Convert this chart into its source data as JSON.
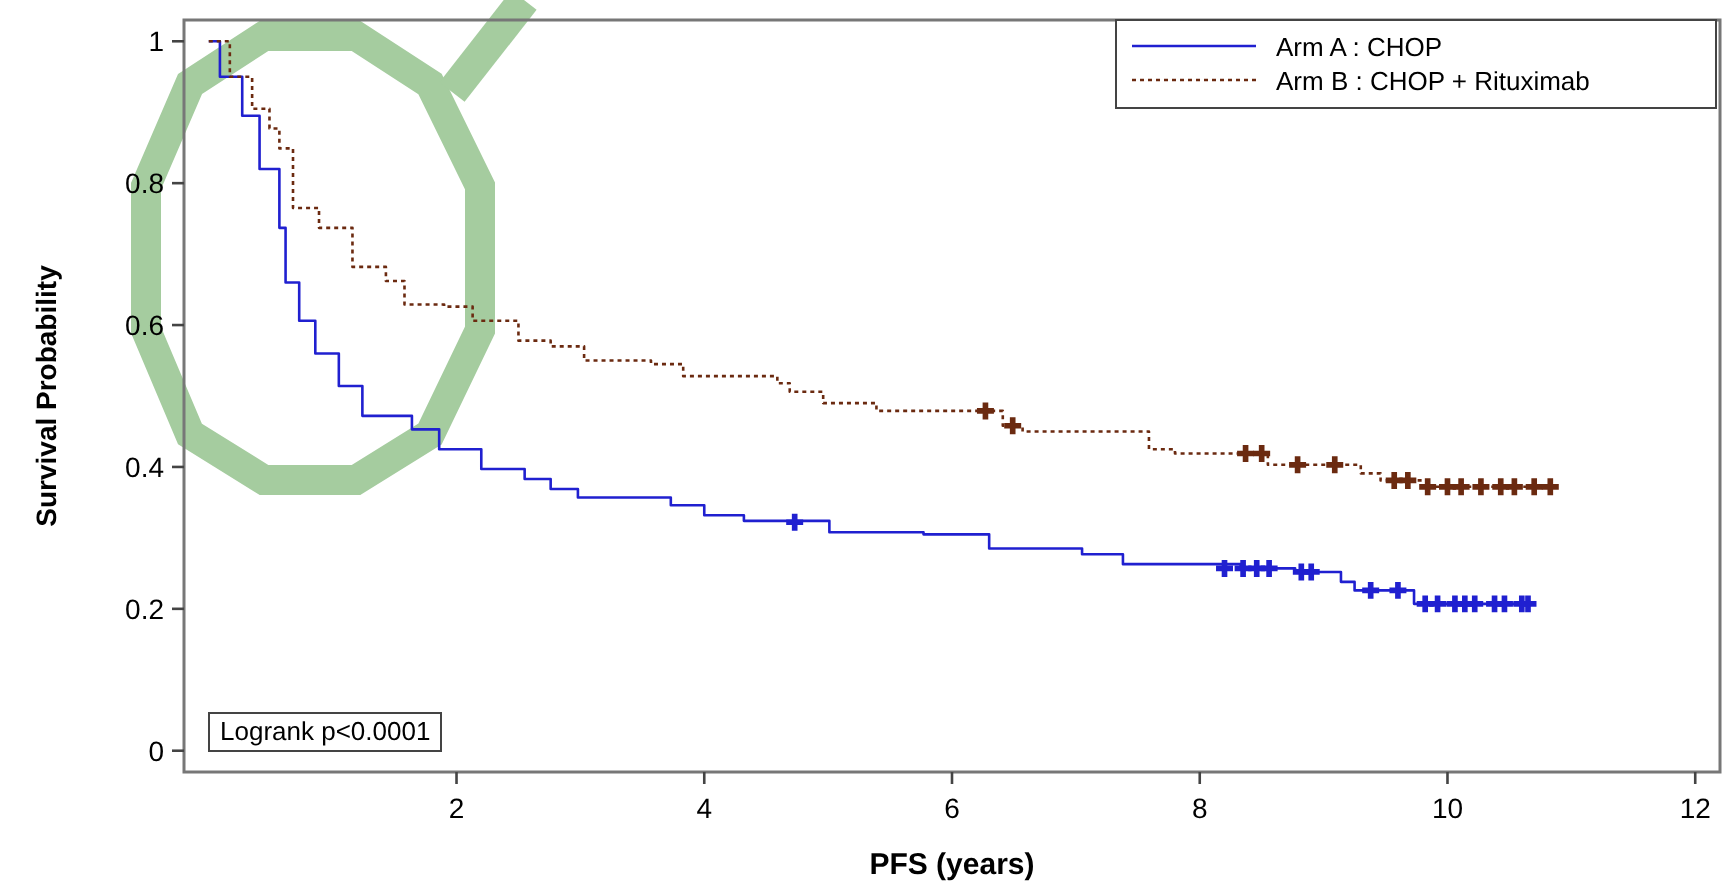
{
  "chart_data": {
    "type": "step",
    "xlabel": "PFS (years)",
    "ylabel": "Survival Probability",
    "xlim": [
      -0.2,
      12.2
    ],
    "ylim": [
      -0.03,
      1.03
    ],
    "xticks": [
      2,
      4,
      6,
      8,
      10,
      12
    ],
    "yticks": [
      0,
      0.2,
      0.4,
      0.6,
      0.8,
      1
    ],
    "legend": "top right",
    "grid": false,
    "annotations": [
      "Logrank p<0.0001"
    ],
    "series": [
      {
        "name": "Arm A : CHOP",
        "color": "#2020d0",
        "line_style": "solid",
        "marker": "none",
        "x": [
          0,
          0.09,
          0.27,
          0.41,
          0.57,
          0.62,
          0.73,
          0.86,
          1.05,
          1.24,
          1.64,
          1.86,
          2.2,
          2.55,
          2.76,
          2.98,
          3.73,
          4.0,
          4.32,
          5.01,
          5.77,
          6.3,
          7.05,
          7.38,
          8.33,
          8.77,
          9.14,
          9.25,
          9.73,
          10.7
        ],
        "values": [
          1,
          0.95,
          0.895,
          0.82,
          0.737,
          0.66,
          0.606,
          0.56,
          0.514,
          0.472,
          0.453,
          0.425,
          0.397,
          0.383,
          0.369,
          0.357,
          0.346,
          0.332,
          0.324,
          0.308,
          0.305,
          0.285,
          0.277,
          0.263,
          0.257,
          0.252,
          0.238,
          0.226,
          0.207,
          0.207
        ]
      },
      {
        "name": "Arm B : CHOP + Rituximab",
        "color": "#6b2a10",
        "line_style": "dotted",
        "marker": "none",
        "x": [
          0,
          0.17,
          0.35,
          0.49,
          0.57,
          0.68,
          0.89,
          1.16,
          1.43,
          1.58,
          1.9,
          2.13,
          2.5,
          2.76,
          3.03,
          3.57,
          3.83,
          4.16,
          4.59,
          4.69,
          4.96,
          5.39,
          6.41,
          6.57,
          7.59,
          7.8,
          8.55,
          9.3,
          9.46,
          9.84,
          10.88
        ],
        "values": [
          1,
          0.95,
          0.905,
          0.877,
          0.849,
          0.765,
          0.737,
          0.682,
          0.662,
          0.629,
          0.626,
          0.606,
          0.578,
          0.57,
          0.55,
          0.545,
          0.528,
          0.528,
          0.518,
          0.506,
          0.49,
          0.479,
          0.458,
          0.45,
          0.425,
          0.419,
          0.403,
          0.391,
          0.381,
          0.372,
          0.372
        ]
      },
      {
        "type": "scatter",
        "color": "#2020d0",
        "marker": "cross",
        "x": [
          4.73,
          8.2,
          8.35,
          8.46,
          8.56,
          8.82,
          8.9,
          9.38,
          9.6,
          9.82,
          9.92,
          10.06,
          10.14,
          10.22,
          10.38,
          10.46,
          10.6,
          10.65
        ],
        "values": [
          0.322,
          0.257,
          0.257,
          0.257,
          0.257,
          0.252,
          0.252,
          0.226,
          0.226,
          0.207,
          0.207,
          0.207,
          0.207,
          0.207,
          0.207,
          0.207,
          0.207,
          0.207
        ]
      },
      {
        "type": "scatter",
        "color": "#6b2a10",
        "marker": "cross",
        "x": [
          6.27,
          6.49,
          8.37,
          8.5,
          8.79,
          9.09,
          9.57,
          9.68,
          9.84,
          10.0,
          10.11,
          10.27,
          10.43,
          10.54,
          10.7,
          10.83
        ],
        "values": [
          0.479,
          0.458,
          0.419,
          0.419,
          0.403,
          0.403,
          0.381,
          0.381,
          0.372,
          0.372,
          0.372,
          0.372,
          0.372,
          0.372,
          0.372,
          0.372
        ]
      }
    ]
  }
}
